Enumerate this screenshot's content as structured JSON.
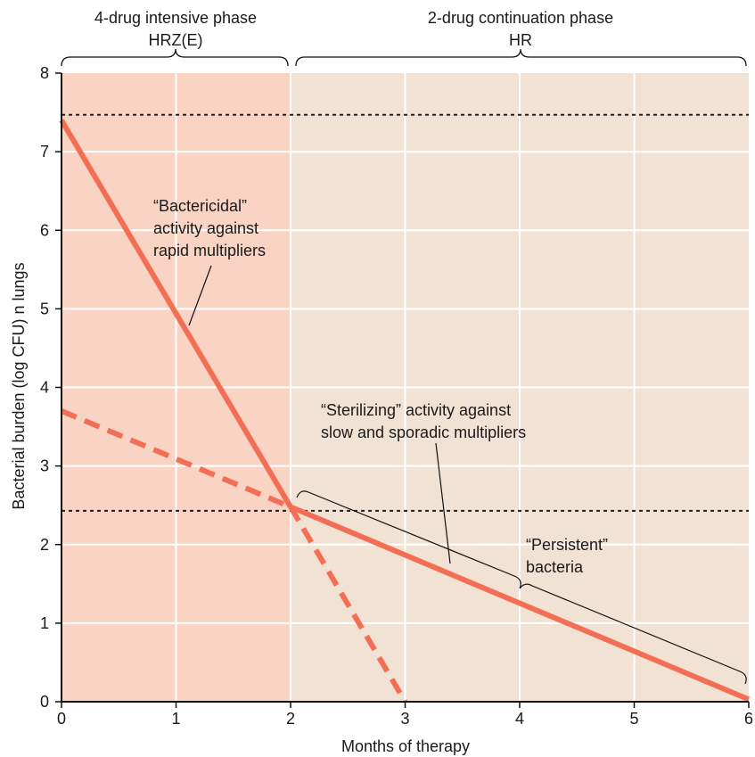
{
  "colors": {
    "intensive_bg": "#f9d3c3",
    "continuation_bg": "#f2e2d3",
    "line": "#f26f55",
    "grid": "#ffffff",
    "dotted": "#222222",
    "axis": "#111111",
    "annotation": "#111111"
  },
  "phases": [
    {
      "title": "4-drug intensive phase",
      "regimen": "HRZ(E)",
      "from": 0,
      "to": 2
    },
    {
      "title": "2-drug continuation phase",
      "regimen": "HR",
      "from": 2,
      "to": 6
    }
  ],
  "annotations": {
    "bactericidal": [
      "“Bactericidal”",
      "activity against",
      "rapid multipliers"
    ],
    "sterilizing": [
      "“Sterilizing” activity against",
      "slow and sporadic multipliers"
    ],
    "persistent": [
      "“Persistent”",
      "bacteria"
    ]
  },
  "chart_data": {
    "type": "line",
    "xlabel": "Months of therapy",
    "ylabel": "Bacterial burden (log CFU) n lungs",
    "xlim": [
      0,
      6
    ],
    "ylim": [
      0,
      8
    ],
    "xticks": [
      0,
      1,
      2,
      3,
      4,
      5,
      6
    ],
    "yticks": [
      0,
      1,
      2,
      3,
      4,
      5,
      6,
      7,
      8
    ],
    "grid": true,
    "series": [
      {
        "style": "solid",
        "points": [
          [
            0,
            7.4
          ],
          [
            2,
            2.48
          ]
        ]
      },
      {
        "style": "solid",
        "points": [
          [
            2,
            2.48
          ],
          [
            6,
            0.03
          ]
        ]
      },
      {
        "style": "dashed",
        "points": [
          [
            0,
            3.7
          ],
          [
            2,
            2.48
          ]
        ]
      },
      {
        "style": "dashed",
        "points": [
          [
            2,
            2.48
          ],
          [
            3,
            0
          ]
        ]
      }
    ],
    "reference_lines": [
      {
        "y": 7.47,
        "style": "dotted"
      },
      {
        "y": 2.43,
        "style": "dotted"
      }
    ]
  }
}
